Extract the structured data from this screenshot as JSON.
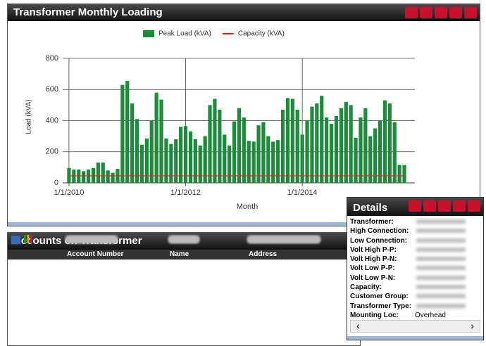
{
  "chart_panel": {
    "title": "Transformer Monthly Loading"
  },
  "chart_data": {
    "type": "bar",
    "xlabel": "Month",
    "ylabel": "Load (kVA)",
    "categories": [
      "1/1/2010",
      null,
      null,
      null,
      null,
      null,
      null,
      null,
      null,
      null,
      null,
      null,
      null,
      null,
      null,
      null,
      null,
      null,
      null,
      null,
      null,
      null,
      null,
      null,
      "1/1/2012",
      null,
      null,
      null,
      null,
      null,
      null,
      null,
      null,
      null,
      null,
      null,
      null,
      null,
      null,
      null,
      null,
      null,
      null,
      null,
      null,
      null,
      null,
      null,
      "1/1/2014",
      null,
      null,
      null,
      null,
      null,
      null,
      null,
      null,
      null,
      null,
      null,
      null,
      null,
      null,
      null,
      null,
      null,
      null,
      null,
      null,
      null
    ],
    "series": [
      {
        "name": "Peak Load (kVA)",
        "color": "#1e8a3c",
        "kind": "bar",
        "values": [
          95,
          85,
          85,
          75,
          85,
          95,
          130,
          130,
          80,
          65,
          90,
          630,
          655,
          510,
          410,
          245,
          285,
          400,
          580,
          535,
          285,
          250,
          280,
          360,
          365,
          330,
          280,
          240,
          300,
          500,
          540,
          470,
          310,
          240,
          395,
          480,
          420,
          270,
          265,
          370,
          390,
          300,
          265,
          275,
          470,
          545,
          540,
          470,
          310,
          400,
          490,
          510,
          560,
          420,
          380,
          430,
          480,
          520,
          500,
          290,
          420,
          480,
          300,
          350,
          400,
          530,
          510,
          390,
          115,
          115
        ]
      },
      {
        "name": "Capacity (kVA)",
        "color": "#e02020",
        "kind": "line",
        "values": [
          45,
          45,
          45,
          45,
          45,
          45,
          45,
          45,
          45,
          45,
          45,
          45,
          45,
          45,
          45,
          45,
          45,
          45,
          45,
          45,
          45,
          45,
          45,
          45,
          45,
          45,
          45,
          45,
          45,
          45,
          45,
          45,
          45,
          45,
          45,
          45,
          45,
          45,
          45,
          45,
          45,
          45,
          45,
          45,
          45,
          45,
          45,
          45,
          45,
          45,
          45,
          45,
          45,
          45,
          45,
          45,
          45,
          45,
          45,
          45,
          45,
          45,
          45,
          45,
          45,
          45,
          45,
          45,
          45,
          45
        ]
      }
    ],
    "ylim": [
      0,
      800
    ],
    "yticks": [
      0,
      200,
      400,
      600,
      800
    ],
    "grid": true
  },
  "accounts": {
    "title": "Accounts on Transformer",
    "columns": [
      "Account Number",
      "Name",
      "Address"
    ]
  },
  "details": {
    "title": "Details",
    "fields": [
      {
        "label": "Transformer:"
      },
      {
        "label": "High Connection:"
      },
      {
        "label": "Low Connection:"
      },
      {
        "label": "Volt High P-P:"
      },
      {
        "label": "Volt High P-N:"
      },
      {
        "label": "Volt Low P-P:"
      },
      {
        "label": "Volt Low P-N:"
      },
      {
        "label": "Capacity:"
      },
      {
        "label": "Customer Group:"
      },
      {
        "label": "Transformer Type:"
      },
      {
        "label": "Mounting Loc:",
        "value": "Overhead"
      }
    ]
  }
}
